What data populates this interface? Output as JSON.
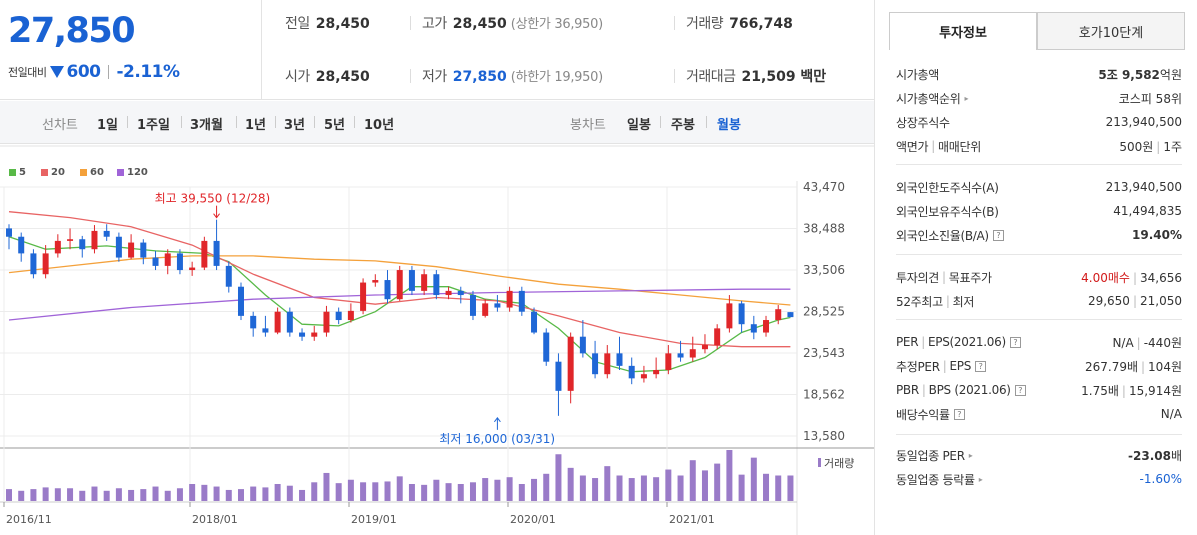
{
  "header": {
    "price": "27,850",
    "change_label": "전일대비",
    "change_amount": "600",
    "change_pct": "-2.11%"
  },
  "stats": {
    "prev_close": {
      "label": "전일",
      "value": "28,450"
    },
    "high": {
      "label": "고가",
      "value": "28,450",
      "sub": "(상한가 36,950)"
    },
    "volume": {
      "label": "거래량",
      "value": "766,748"
    },
    "open": {
      "label": "시가",
      "value": "28,450"
    },
    "low": {
      "label": "저가",
      "value": "27,850",
      "sub": "(하한가 19,950)"
    },
    "amount": {
      "label": "거래대금",
      "value": "21,509 백만"
    }
  },
  "period_bar": {
    "line_title": "선차트",
    "line_items": [
      "1일",
      "1주일",
      "3개월",
      "1년",
      "3년",
      "5년",
      "10년"
    ],
    "candle_title": "봉차트",
    "candle_items": [
      "일봉",
      "주봉",
      "월봉"
    ],
    "active_candle": "월봉"
  },
  "legend": [
    {
      "label": "5",
      "color": "#58b947"
    },
    {
      "label": "20",
      "color": "#e86464"
    },
    {
      "label": "60",
      "color": "#f4a13b"
    },
    {
      "label": "120",
      "color": "#a064d8"
    }
  ],
  "colors": {
    "up": "#e0262a",
    "down": "#1f67d6",
    "volume": "#9a7bc8",
    "accent": "#1a62d3"
  },
  "chart_data": {
    "type": "candlestick",
    "y_ticks": [
      "43,470",
      "38,488",
      "33,506",
      "28,525",
      "23,543",
      "18,562",
      "13,580"
    ],
    "ylim": [
      13580,
      43470
    ],
    "x_ticks": [
      "2016/11",
      "2018/01",
      "2019/01",
      "2020/01",
      "2021/01"
    ],
    "annotations": {
      "high": {
        "text": "최고 39,550 (12/28)",
        "candle": 17,
        "price": 39550
      },
      "low": {
        "text": "최저 16,000 (03/31)",
        "candle": 40,
        "price": 16000
      }
    },
    "volume_label": "거래량",
    "candles": [
      [
        38500,
        37500,
        39000,
        36000
      ],
      [
        37500,
        35500,
        38000,
        34500
      ],
      [
        35500,
        33000,
        36000,
        32500
      ],
      [
        33000,
        35500,
        36500,
        32500
      ],
      [
        35500,
        37000,
        37800,
        35000
      ],
      [
        37000,
        37200,
        38500,
        36000
      ],
      [
        37200,
        36000,
        37600,
        35000
      ],
      [
        36000,
        38200,
        38900,
        35500
      ],
      [
        38200,
        37500,
        39000,
        37000
      ],
      [
        37500,
        35000,
        38000,
        34500
      ],
      [
        35000,
        36800,
        37800,
        34800
      ],
      [
        36800,
        35000,
        37200,
        34200
      ],
      [
        35000,
        34000,
        35800,
        33500
      ],
      [
        34000,
        35500,
        36000,
        33000
      ],
      [
        35500,
        33500,
        36000,
        33000
      ],
      [
        33500,
        33800,
        34500,
        32800
      ],
      [
        33800,
        37000,
        37500,
        33500
      ],
      [
        37000,
        34000,
        39550,
        33500
      ],
      [
        34000,
        31500,
        34500,
        30800
      ],
      [
        31500,
        28000,
        32000,
        27500
      ],
      [
        28000,
        26500,
        28500,
        25500
      ],
      [
        26500,
        26000,
        28000,
        25500
      ],
      [
        26000,
        28500,
        29000,
        25800
      ],
      [
        28500,
        26000,
        29000,
        25500
      ],
      [
        26000,
        25500,
        26500,
        25000
      ],
      [
        25500,
        26000,
        26800,
        25000
      ],
      [
        26000,
        28500,
        29200,
        25500
      ],
      [
        28500,
        27500,
        29000,
        27000
      ],
      [
        27500,
        28600,
        29500,
        27200
      ],
      [
        28600,
        32000,
        32500,
        28200
      ],
      [
        32000,
        32300,
        33000,
        31500
      ],
      [
        32300,
        30000,
        33500,
        29500
      ],
      [
        30000,
        33500,
        34000,
        29800
      ],
      [
        33500,
        31000,
        34000,
        30500
      ],
      [
        31000,
        33000,
        33600,
        30500
      ],
      [
        33000,
        30500,
        33500,
        30000
      ],
      [
        30500,
        31000,
        31500,
        30000
      ],
      [
        31000,
        30500,
        31500,
        29500
      ],
      [
        30500,
        28000,
        31000,
        27500
      ],
      [
        28000,
        29500,
        30000,
        27800
      ],
      [
        29500,
        29000,
        30500,
        28500
      ],
      [
        29000,
        31000,
        31500,
        28500
      ],
      [
        31000,
        28500,
        31500,
        28000
      ],
      [
        28500,
        26000,
        29000,
        25800
      ],
      [
        26000,
        22500,
        26500,
        22000
      ],
      [
        22500,
        19000,
        23500,
        16000
      ],
      [
        19000,
        25500,
        26000,
        17500
      ],
      [
        25500,
        23500,
        27500,
        23000
      ],
      [
        23500,
        21000,
        25000,
        20500
      ],
      [
        21000,
        23500,
        24500,
        20500
      ],
      [
        23500,
        22000,
        25500,
        21500
      ],
      [
        22000,
        20500,
        23000,
        19800
      ],
      [
        20500,
        21000,
        22000,
        20000
      ],
      [
        21000,
        21500,
        23000,
        20500
      ],
      [
        21500,
        23500,
        24500,
        21000
      ],
      [
        23500,
        23000,
        25000,
        22500
      ],
      [
        23000,
        24000,
        25500,
        22500
      ],
      [
        24000,
        24500,
        25800,
        23500
      ],
      [
        24500,
        26500,
        27000,
        24000
      ],
      [
        26500,
        29500,
        30500,
        26000
      ],
      [
        29500,
        27000,
        29800,
        26000
      ],
      [
        27000,
        26000,
        28000,
        25200
      ],
      [
        26000,
        27500,
        28000,
        25500
      ],
      [
        27500,
        28800,
        29300,
        27000
      ],
      [
        28450,
        27850,
        28450,
        27850
      ]
    ],
    "ma": [
      {
        "period": 5,
        "points": [
          [
            0,
            37500
          ],
          [
            3,
            36000
          ],
          [
            8,
            36400
          ],
          [
            12,
            35800
          ],
          [
            16,
            35500
          ],
          [
            18,
            34500
          ],
          [
            21,
            30500
          ],
          [
            24,
            27000
          ],
          [
            27,
            26800
          ],
          [
            30,
            28500
          ],
          [
            33,
            31500
          ],
          [
            36,
            31500
          ],
          [
            39,
            30000
          ],
          [
            42,
            29500
          ],
          [
            45,
            26500
          ],
          [
            48,
            22500
          ],
          [
            51,
            21300
          ],
          [
            54,
            21500
          ],
          [
            57,
            23000
          ],
          [
            60,
            26000
          ],
          [
            63,
            27500
          ],
          [
            64,
            27800
          ]
        ]
      },
      {
        "period": 20,
        "points": [
          [
            0,
            40500
          ],
          [
            5,
            39800
          ],
          [
            10,
            38700
          ],
          [
            15,
            36500
          ],
          [
            20,
            33000
          ],
          [
            25,
            30200
          ],
          [
            30,
            29400
          ],
          [
            35,
            30200
          ],
          [
            40,
            29800
          ],
          [
            45,
            28000
          ],
          [
            50,
            26000
          ],
          [
            55,
            24700
          ],
          [
            60,
            24300
          ],
          [
            64,
            24300
          ]
        ]
      },
      {
        "period": 60,
        "points": [
          [
            0,
            33200
          ],
          [
            5,
            34000
          ],
          [
            10,
            34800
          ],
          [
            15,
            35200
          ],
          [
            20,
            35200
          ],
          [
            25,
            34800
          ],
          [
            30,
            34600
          ],
          [
            35,
            33900
          ],
          [
            40,
            32800
          ],
          [
            45,
            31800
          ],
          [
            50,
            31200
          ],
          [
            55,
            30500
          ],
          [
            60,
            29800
          ],
          [
            64,
            29300
          ]
        ]
      },
      {
        "period": 120,
        "points": [
          [
            0,
            27500
          ],
          [
            10,
            29000
          ],
          [
            20,
            30000
          ],
          [
            30,
            30500
          ],
          [
            40,
            30800
          ],
          [
            50,
            31000
          ],
          [
            60,
            31200
          ],
          [
            64,
            31200
          ]
        ]
      }
    ],
    "volume": [
      14,
      12,
      14,
      16,
      15,
      15,
      12,
      17,
      12,
      15,
      13,
      14,
      17,
      12,
      15,
      20,
      19,
      17,
      13,
      14,
      17,
      16,
      20,
      18,
      13,
      22,
      33,
      21,
      25,
      22,
      22,
      23,
      29,
      20,
      19,
      25,
      21,
      20,
      22,
      27,
      25,
      28,
      20,
      26,
      32,
      55,
      39,
      30,
      27,
      41,
      30,
      27,
      30,
      28,
      37,
      30,
      48,
      36,
      44,
      60,
      31,
      51,
      32,
      30,
      30
    ]
  },
  "tabs": {
    "invest_info": "투자정보",
    "orderbook": "호가10단계"
  },
  "info": {
    "market_cap": {
      "label": "시가총액",
      "value_bold": "5조 9,582",
      "value_unit": "억원"
    },
    "market_cap_rank": {
      "label": "시가총액순위",
      "value": "코스피 58위"
    },
    "listed_shares": {
      "label": "상장주식수",
      "value": "213,940,500"
    },
    "par_value": {
      "label1": "액면가",
      "label2": "매매단위",
      "value1": "500원",
      "value2": "1주"
    },
    "foreign_limit": {
      "label": "외국인한도주식수(A)",
      "value": "213,940,500"
    },
    "foreign_hold": {
      "label": "외국인보유주식수(B)",
      "value": "41,494,835"
    },
    "foreign_ratio": {
      "label": "외국인소진율(B/A)",
      "value": "19.40%"
    },
    "opinion": {
      "label1": "투자의견",
      "label2": "목표주가",
      "value_opinion": "4.00매수",
      "value_target": "34,656"
    },
    "week52": {
      "label1": "52주최고",
      "label2": "최저",
      "value_high": "29,650",
      "value_low": "21,050"
    },
    "per": {
      "label1": "PER",
      "label2": "EPS(2021.06)",
      "value1": "N/A",
      "value2": "-440원"
    },
    "est_per": {
      "label1": "추정PER",
      "label2": "EPS",
      "value1": "267.79배",
      "value2": "104원"
    },
    "pbr": {
      "label1": "PBR",
      "label2": "BPS (2021.06)",
      "value1": "1.75배",
      "value2": "15,914원"
    },
    "dividend": {
      "label": "배당수익률",
      "value": "N/A"
    },
    "sector_per": {
      "label": "동일업종 PER",
      "value": "-23.08",
      "unit": "배"
    },
    "sector_chg": {
      "label": "동일업종 등락률",
      "value": "-1.60%"
    }
  }
}
